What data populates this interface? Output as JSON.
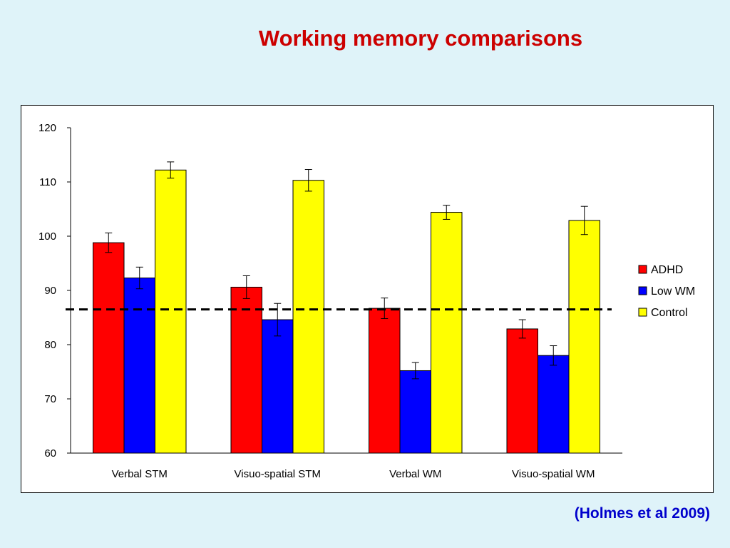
{
  "slide": {
    "title": "Working memory comparisons",
    "citation": "(Holmes et al 2009)"
  },
  "chart_data": {
    "type": "bar",
    "title": "",
    "xlabel": "",
    "ylabel": "",
    "categories": [
      "Verbal STM",
      "Visuo-spatial STM",
      "Verbal WM",
      "Visuo-spatial WM"
    ],
    "ylim": [
      60,
      120
    ],
    "yticks": [
      60,
      70,
      80,
      90,
      100,
      110,
      120
    ],
    "grid": false,
    "legend_position": "right",
    "series": [
      {
        "name": "ADHD",
        "color": "#ff0000",
        "values": [
          98.8,
          90.6,
          86.7,
          82.9
        ],
        "errors": [
          1.8,
          2.1,
          1.9,
          1.7
        ]
      },
      {
        "name": "Low WM",
        "color": "#0000ff",
        "values": [
          92.3,
          84.6,
          75.2,
          78.0
        ],
        "errors": [
          2.0,
          3.0,
          1.5,
          1.8
        ]
      },
      {
        "name": "Control",
        "color": "#ffff00",
        "values": [
          112.2,
          110.3,
          104.4,
          102.9
        ],
        "errors": [
          1.5,
          2.0,
          1.3,
          2.6
        ]
      }
    ],
    "reference_line": {
      "value": 86.5,
      "style": "dashed"
    }
  }
}
